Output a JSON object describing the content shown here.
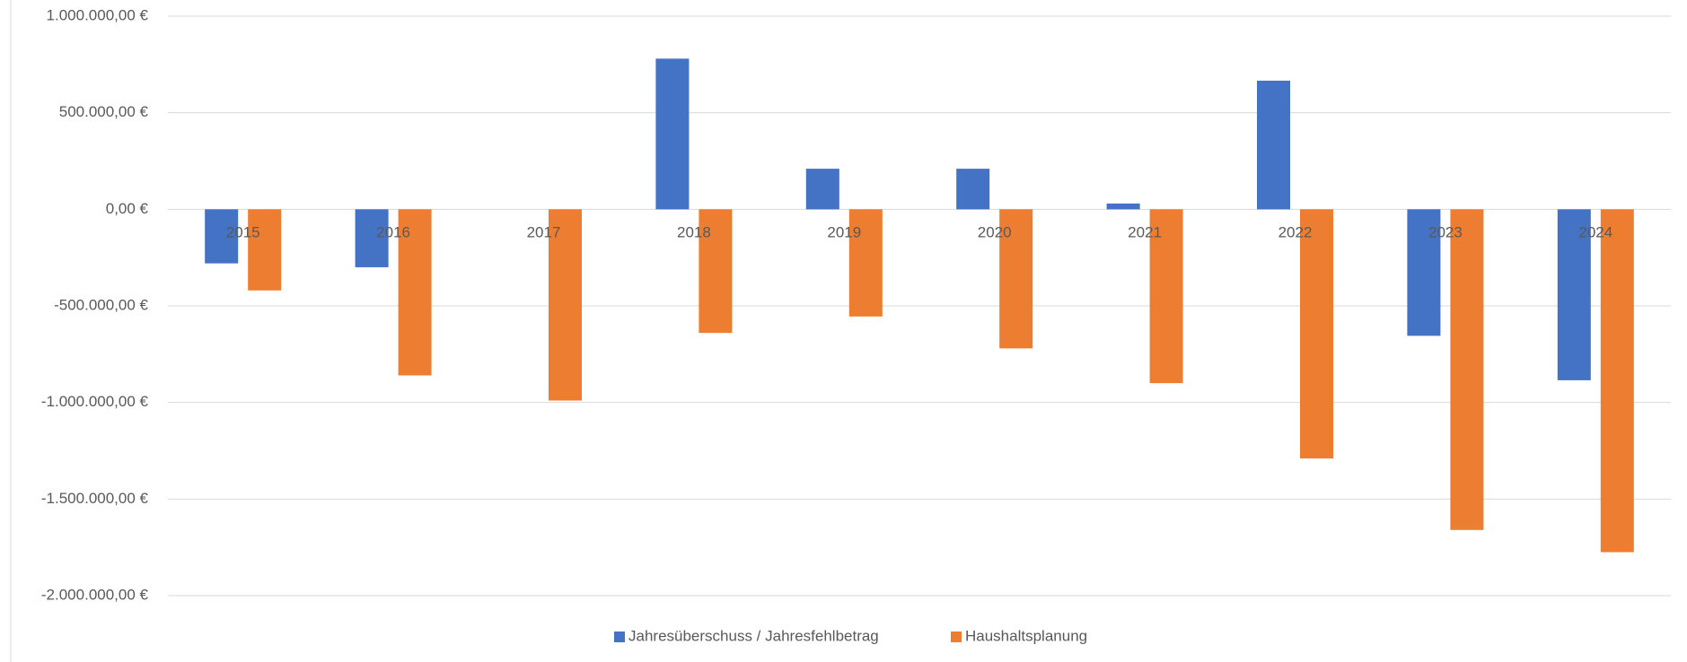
{
  "chart_data": {
    "type": "bar",
    "categories": [
      "2015",
      "2016",
      "2017",
      "2018",
      "2019",
      "2020",
      "2021",
      "2022",
      "2023",
      "2024"
    ],
    "series": [
      {
        "name": "Jahresüberschuss / Jahresfehlbetrag",
        "color": "#4472c4",
        "values": [
          -280000,
          -300000,
          null,
          780000,
          210000,
          210000,
          30000,
          666000,
          -655000,
          -885000
        ]
      },
      {
        "name": "Haushaltsplanung",
        "color": "#ed7d31",
        "values": [
          -420000,
          -860000,
          -990000,
          -640000,
          -555000,
          -720000,
          -900000,
          -1290000,
          -1660000,
          -1775000
        ]
      }
    ],
    "ylim": [
      -2000000,
      1000000
    ],
    "yticks": [
      {
        "value": -2000000,
        "label": "-2.000.000,00 €"
      },
      {
        "value": -1500000,
        "label": "-1.500.000,00 €"
      },
      {
        "value": -1000000,
        "label": "-1.000.000,00 €"
      },
      {
        "value": -500000,
        "label": "-500.000,00 €"
      },
      {
        "value": 0,
        "label": "0,00 €"
      },
      {
        "value": 500000,
        "label": "500.000,00 €"
      },
      {
        "value": 1000000,
        "label": "1.000.000,00 €"
      }
    ],
    "grid": true,
    "legend": "bottom"
  }
}
